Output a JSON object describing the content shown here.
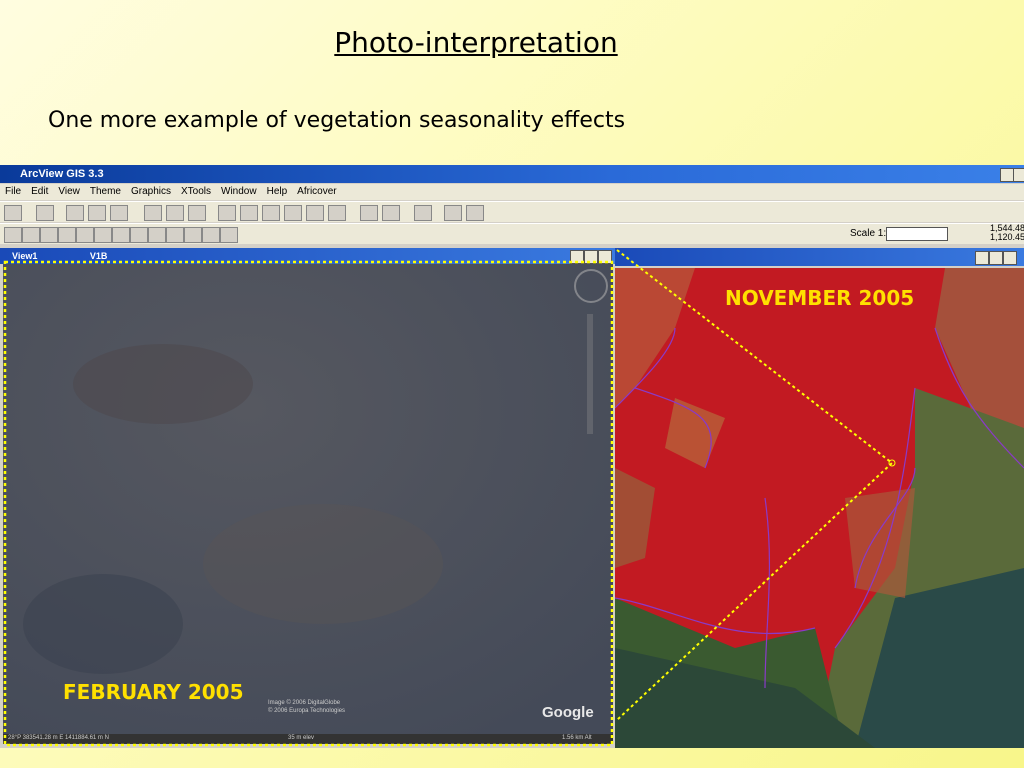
{
  "slide": {
    "title": "Photo-interpretation",
    "subtitle": "One more example of vegetation seasonality effects"
  },
  "window": {
    "title": "ArcView GIS 3.3",
    "menu": [
      "File",
      "Edit",
      "View",
      "Theme",
      "Graphics",
      "XTools",
      "Window",
      "Help",
      "Africover"
    ],
    "scale_label": "Scale 1:",
    "scale_values": [
      "1,544.48",
      "1,120.45"
    ]
  },
  "views": {
    "left": {
      "tabs": [
        "View1",
        "V1B"
      ],
      "label": "FEBRUARY 2005",
      "logo": "Google",
      "credits": [
        "Image © 2006 DigitalGlobe",
        "© 2006 Europa Technologies"
      ],
      "status": [
        "28°P 383541.28 m E 1411884.61 m N",
        "35 m elev",
        "1.56 km Alt"
      ]
    },
    "right": {
      "label": "NOVEMBER 2005"
    }
  }
}
